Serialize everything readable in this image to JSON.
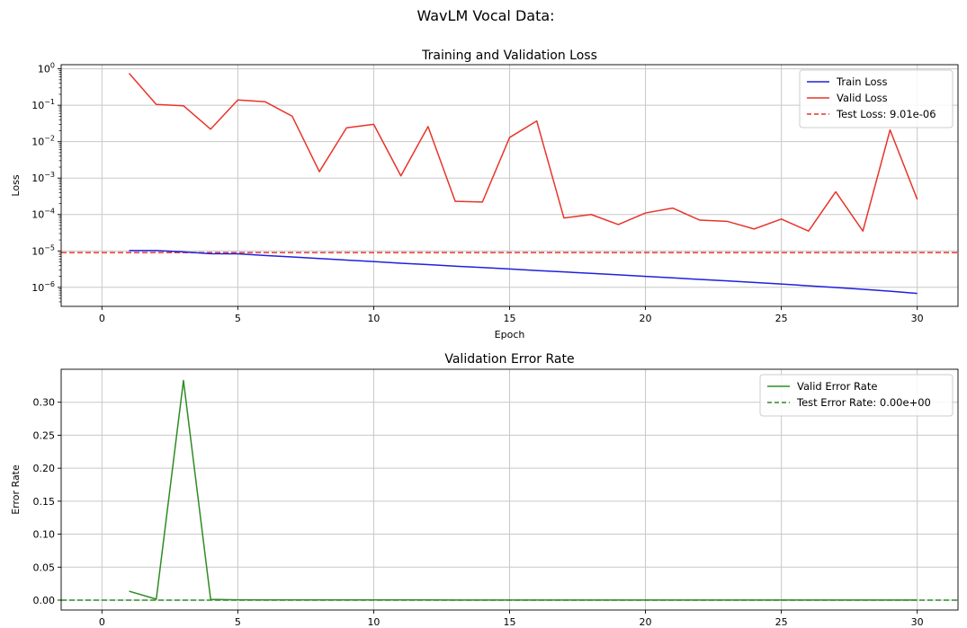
{
  "suptitle": "WavLM Vocal Data:",
  "colors": {
    "train": "#2020dd",
    "valid": "#e8342a",
    "test": "#e8342a",
    "err": "#2e8b23",
    "grid": "#c8c8c8"
  },
  "chart_data": [
    {
      "type": "line",
      "title": "Training and Validation Loss",
      "xlabel": "Epoch",
      "ylabel": "Loss",
      "yscale": "log",
      "xlim": [
        -1.5,
        31.5
      ],
      "ylim": [
        3e-07,
        1.3
      ],
      "xticks": [
        0,
        5,
        10,
        15,
        20,
        25,
        30
      ],
      "yticks": [
        {
          "value": 1e-06,
          "base": "10",
          "exp": "−6"
        },
        {
          "value": 1e-05,
          "base": "10",
          "exp": "−5"
        },
        {
          "value": 0.0001,
          "base": "10",
          "exp": "−4"
        },
        {
          "value": 0.001,
          "base": "10",
          "exp": "−3"
        },
        {
          "value": 0.01,
          "base": "10",
          "exp": "−2"
        },
        {
          "value": 0.1,
          "base": "10",
          "exp": "−1"
        },
        {
          "value": 1,
          "base": "10",
          "exp": "0"
        }
      ],
      "grid": true,
      "legend": "top-right",
      "series": [
        {
          "name": "Train Loss",
          "color": "#2020dd",
          "style": "solid",
          "x": [
            1,
            2,
            3,
            4,
            5,
            6,
            7,
            8,
            9,
            10,
            11,
            12,
            13,
            14,
            15,
            16,
            17,
            18,
            19,
            20,
            21,
            22,
            23,
            24,
            25,
            26,
            27,
            28,
            29,
            30
          ],
          "values": [
            1.02e-05,
            1.02e-05,
            9.4e-06,
            8.4e-06,
            8.3e-06,
            7.5e-06,
            6.8e-06,
            6.2e-06,
            5.6e-06,
            5.1e-06,
            4.6e-06,
            4.2e-06,
            3.8e-06,
            3.5e-06,
            3.2e-06,
            2.9e-06,
            2.65e-06,
            2.42e-06,
            2.2e-06,
            2e-06,
            1.82e-06,
            1.65e-06,
            1.5e-06,
            1.36e-06,
            1.23e-06,
            1.1e-06,
            9.9e-07,
            8.8e-07,
            7.8e-07,
            6.8e-07
          ]
        },
        {
          "name": "Valid Loss",
          "color": "#e8342a",
          "style": "solid",
          "x": [
            1,
            2,
            3,
            4,
            5,
            6,
            7,
            8,
            9,
            10,
            11,
            12,
            13,
            14,
            15,
            16,
            17,
            18,
            19,
            20,
            21,
            22,
            23,
            24,
            25,
            26,
            27,
            28,
            29,
            30
          ],
          "values": [
            0.75,
            0.105,
            0.097,
            0.022,
            0.14,
            0.125,
            0.05,
            0.0015,
            0.024,
            0.03,
            0.00115,
            0.026,
            0.00023,
            0.00022,
            0.013,
            0.037,
            8e-05,
            0.0001,
            5.3e-05,
            0.00011,
            0.00015,
            7e-05,
            6.5e-05,
            4e-05,
            7.5e-05,
            3.5e-05,
            0.00042,
            3.5e-05,
            0.021,
            0.00026
          ]
        }
      ],
      "hlines": [
        {
          "name": "Test Loss: 9.01e-06",
          "value": 9.01e-06,
          "color": "#e8342a",
          "style": "dashed"
        }
      ]
    },
    {
      "type": "line",
      "title": "Validation Error Rate",
      "xlabel": "",
      "ylabel": "Error Rate",
      "yscale": "linear",
      "xlim": [
        -1.5,
        31.5
      ],
      "ylim": [
        -0.015,
        0.35
      ],
      "xticks": [
        0,
        5,
        10,
        15,
        20,
        25,
        30
      ],
      "yticks": [
        {
          "value": 0.0,
          "label": "0.00"
        },
        {
          "value": 0.05,
          "label": "0.05"
        },
        {
          "value": 0.1,
          "label": "0.10"
        },
        {
          "value": 0.15,
          "label": "0.15"
        },
        {
          "value": 0.2,
          "label": "0.20"
        },
        {
          "value": 0.25,
          "label": "0.25"
        },
        {
          "value": 0.3,
          "label": "0.30"
        }
      ],
      "grid": true,
      "legend": "top-right",
      "series": [
        {
          "name": "Valid Error Rate",
          "color": "#2e8b23",
          "style": "solid",
          "x": [
            1,
            2,
            3,
            4,
            5,
            6,
            7,
            8,
            9,
            10,
            11,
            12,
            13,
            14,
            15,
            16,
            17,
            18,
            19,
            20,
            21,
            22,
            23,
            24,
            25,
            26,
            27,
            28,
            29,
            30
          ],
          "values": [
            0.0135,
            0.0015,
            0.333,
            0.0012,
            0.0005,
            0.0004,
            0.0004,
            0.0003,
            0.0003,
            0.0003,
            0.0003,
            0.0003,
            0.0002,
            0.0002,
            0.0002,
            0.0002,
            0.0002,
            0.0002,
            0.0002,
            0.0002,
            0.0002,
            0.0002,
            0.0002,
            0.0002,
            0.0002,
            0.0002,
            0.0002,
            0.0002,
            0.0002,
            0.0002
          ]
        }
      ],
      "hlines": [
        {
          "name": "Test Error Rate: 0.00e+00",
          "value": 0.0,
          "color": "#2e8b23",
          "style": "dashed"
        }
      ]
    }
  ]
}
